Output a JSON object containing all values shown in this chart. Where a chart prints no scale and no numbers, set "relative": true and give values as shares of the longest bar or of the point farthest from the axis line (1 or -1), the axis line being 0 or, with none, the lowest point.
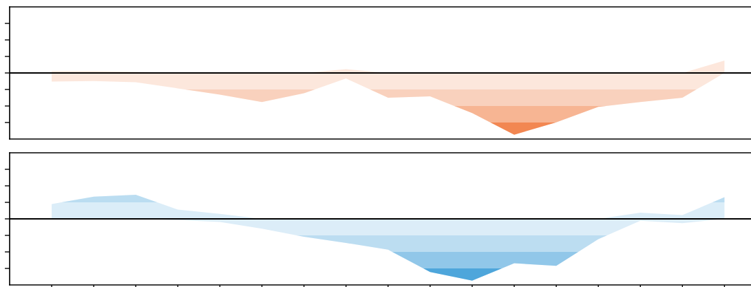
{
  "chart_data": [
    {
      "type": "area",
      "relative": true,
      "tick_labels": false,
      "grid": false,
      "legend": false,
      "categories": [
        null,
        null,
        null,
        null,
        null,
        null,
        null,
        null,
        null,
        null,
        null,
        null,
        null,
        null,
        null,
        null,
        null
      ],
      "series": [
        {
          "color": "#f28752",
          "values": [
            -0.14,
            -0.13,
            -0.15,
            -0.25,
            -0.35,
            -0.47,
            -0.33,
            -0.09,
            -0.4,
            -0.38,
            -0.65,
            -1,
            -0.8,
            -0.55,
            -0.47,
            -0.4,
            0
          ]
        },
        {
          "color": "#f3894f",
          "values": [
            0.03,
            0.03,
            0.02,
            0,
            0,
            0,
            0,
            0.06,
            0,
            0,
            0,
            0,
            0,
            0,
            0,
            0,
            0.2
          ]
        }
      ]
    },
    {
      "type": "area",
      "relative": true,
      "tick_labels": false,
      "grid": false,
      "legend": false,
      "categories": [
        null,
        null,
        null,
        null,
        null,
        null,
        null,
        null,
        null,
        null,
        null,
        null,
        null,
        null,
        null,
        null,
        null
      ],
      "series": [
        {
          "color": "#4ea6db",
          "values": [
            0,
            0,
            0,
            -0.02,
            -0.05,
            -0.16,
            -0.29,
            -0.39,
            -0.5,
            -0.86,
            -1,
            -0.72,
            -0.76,
            -0.33,
            -0.03,
            -0.07,
            0
          ]
        },
        {
          "color": "#4ca4da",
          "values": [
            0.24,
            0.36,
            0.39,
            0.15,
            0.08,
            0,
            0,
            0,
            0,
            0,
            0,
            0,
            0,
            0,
            0.1,
            0.06,
            0.35
          ]
        }
      ]
    }
  ]
}
